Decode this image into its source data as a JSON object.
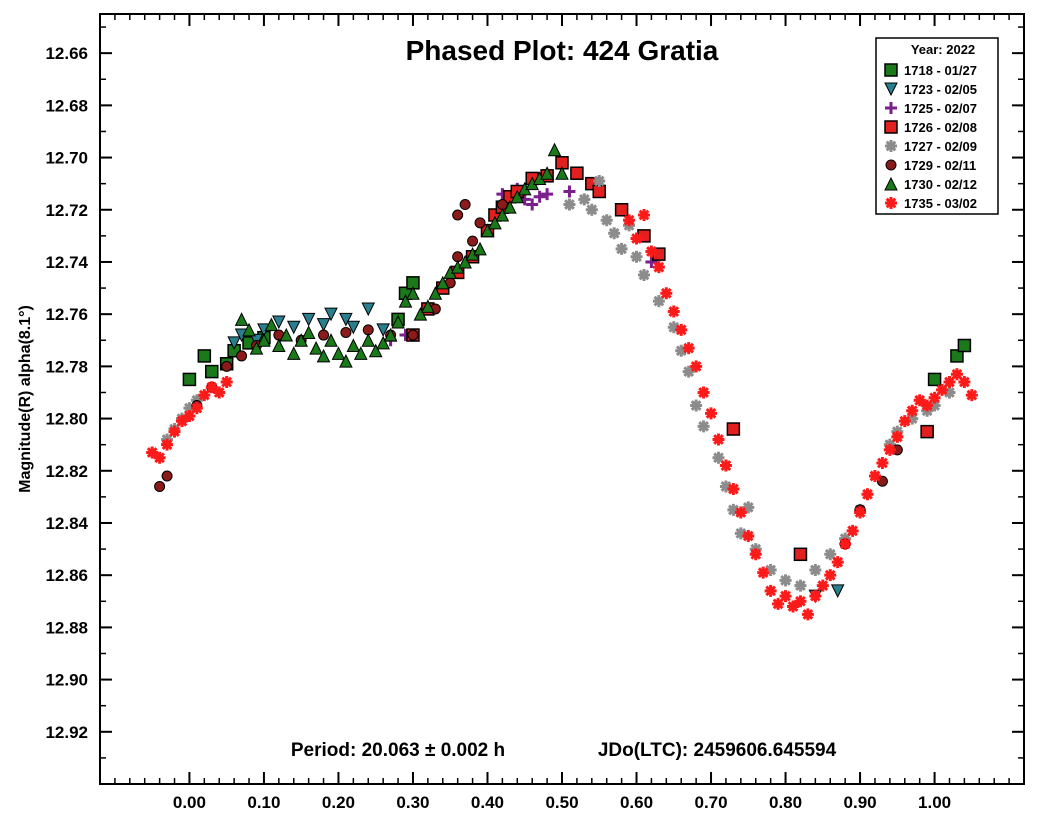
{
  "chart_data": {
    "type": "scatter",
    "title": "Phased Plot: 424 Gratia",
    "xlabel": "",
    "ylabel": "Magnitude(R) alpha(8.1°)",
    "footer_period": "Period: 20.063 ± 0.002 h",
    "footer_epoch": "JDo(LTC): 2459606.645594",
    "x_ticks": [
      "0.00",
      "0.10",
      "0.20",
      "0.30",
      "0.40",
      "0.50",
      "0.60",
      "0.70",
      "0.80",
      "0.90",
      "1.00"
    ],
    "y_ticks": [
      "12.66",
      "12.68",
      "12.70",
      "12.72",
      "12.74",
      "12.76",
      "12.78",
      "12.80",
      "12.82",
      "12.84",
      "12.86",
      "12.88",
      "12.90",
      "12.92"
    ],
    "xlim": [
      -0.12,
      1.12
    ],
    "ylim": [
      12.645,
      12.94
    ],
    "y_inverted": true,
    "grid": false,
    "legend_position": "top-right",
    "legend_title": "Year: 2022",
    "series": [
      {
        "name": "1718 - 01/27",
        "marker": "square",
        "color": "#1a7a1a",
        "points": [
          [
            0.0,
            12.785
          ],
          [
            0.02,
            12.776
          ],
          [
            0.03,
            12.782
          ],
          [
            0.05,
            12.779
          ],
          [
            0.06,
            12.774
          ],
          [
            0.08,
            12.771
          ],
          [
            0.1,
            12.769
          ],
          [
            0.28,
            12.762
          ],
          [
            0.29,
            12.752
          ],
          [
            0.3,
            12.748
          ],
          [
            1.0,
            12.785
          ],
          [
            1.03,
            12.776
          ],
          [
            1.04,
            12.772
          ]
        ]
      },
      {
        "name": "1723 - 02/05",
        "marker": "triangle-down",
        "color": "#2a7f8f",
        "points": [
          [
            0.06,
            12.771
          ],
          [
            0.07,
            12.768
          ],
          [
            0.09,
            12.77
          ],
          [
            0.1,
            12.766
          ],
          [
            0.12,
            12.763
          ],
          [
            0.14,
            12.765
          ],
          [
            0.16,
            12.762
          ],
          [
            0.18,
            12.764
          ],
          [
            0.19,
            12.76
          ],
          [
            0.21,
            12.762
          ],
          [
            0.22,
            12.765
          ],
          [
            0.24,
            12.758
          ],
          [
            0.26,
            12.766
          ],
          [
            0.84,
            12.868
          ],
          [
            0.87,
            12.866
          ]
        ]
      },
      {
        "name": "1725 - 02/07",
        "marker": "plus",
        "color": "#7a1f8c",
        "points": [
          [
            0.27,
            12.77
          ],
          [
            0.29,
            12.768
          ],
          [
            0.42,
            12.714
          ],
          [
            0.44,
            12.712
          ],
          [
            0.45,
            12.716
          ],
          [
            0.46,
            12.718
          ],
          [
            0.47,
            12.715
          ],
          [
            0.48,
            12.714
          ],
          [
            0.51,
            12.713
          ],
          [
            0.62,
            12.74
          ]
        ]
      },
      {
        "name": "1726 - 02/08",
        "marker": "square",
        "color": "#e32020",
        "points": [
          [
            0.3,
            12.768
          ],
          [
            0.32,
            12.758
          ],
          [
            0.34,
            12.75
          ],
          [
            0.36,
            12.744
          ],
          [
            0.38,
            12.738
          ],
          [
            0.4,
            12.728
          ],
          [
            0.41,
            12.722
          ],
          [
            0.42,
            12.719
          ],
          [
            0.43,
            12.715
          ],
          [
            0.44,
            12.713
          ],
          [
            0.46,
            12.708
          ],
          [
            0.48,
            12.707
          ],
          [
            0.5,
            12.702
          ],
          [
            0.52,
            12.706
          ],
          [
            0.54,
            12.71
          ],
          [
            0.55,
            12.713
          ],
          [
            0.58,
            12.72
          ],
          [
            0.61,
            12.73
          ],
          [
            0.63,
            12.737
          ],
          [
            0.73,
            12.804
          ],
          [
            0.82,
            12.852
          ],
          [
            0.99,
            12.805
          ]
        ]
      },
      {
        "name": "1727 - 02/09",
        "marker": "asterisk",
        "color": "#8c8c8c",
        "points": [
          [
            -0.03,
            12.808
          ],
          [
            -0.02,
            12.804
          ],
          [
            -0.01,
            12.8
          ],
          [
            0.0,
            12.796
          ],
          [
            0.01,
            12.793
          ],
          [
            0.51,
            12.718
          ],
          [
            0.53,
            12.716
          ],
          [
            0.54,
            12.72
          ],
          [
            0.55,
            12.709
          ],
          [
            0.56,
            12.724
          ],
          [
            0.57,
            12.729
          ],
          [
            0.58,
            12.735
          ],
          [
            0.59,
            12.726
          ],
          [
            0.6,
            12.738
          ],
          [
            0.61,
            12.745
          ],
          [
            0.63,
            12.755
          ],
          [
            0.65,
            12.765
          ],
          [
            0.66,
            12.774
          ],
          [
            0.67,
            12.782
          ],
          [
            0.68,
            12.795
          ],
          [
            0.69,
            12.803
          ],
          [
            0.71,
            12.815
          ],
          [
            0.72,
            12.826
          ],
          [
            0.73,
            12.835
          ],
          [
            0.74,
            12.844
          ],
          [
            0.75,
            12.834
          ],
          [
            0.76,
            12.85
          ],
          [
            0.78,
            12.858
          ],
          [
            0.8,
            12.862
          ],
          [
            0.82,
            12.864
          ],
          [
            0.84,
            12.858
          ],
          [
            0.86,
            12.852
          ],
          [
            0.88,
            12.846
          ],
          [
            0.9,
            12.835
          ],
          [
            0.92,
            12.822
          ],
          [
            0.94,
            12.81
          ],
          [
            0.95,
            12.805
          ],
          [
            0.97,
            12.8
          ],
          [
            0.99,
            12.797
          ],
          [
            1.0,
            12.795
          ],
          [
            1.02,
            12.79
          ]
        ]
      },
      {
        "name": "1729 - 02/11",
        "marker": "circle",
        "color": "#8b1a1a",
        "points": [
          [
            -0.04,
            12.826
          ],
          [
            -0.03,
            12.822
          ],
          [
            0.01,
            12.795
          ],
          [
            0.03,
            12.788
          ],
          [
            0.05,
            12.78
          ],
          [
            0.07,
            12.776
          ],
          [
            0.09,
            12.772
          ],
          [
            0.12,
            12.768
          ],
          [
            0.15,
            12.77
          ],
          [
            0.18,
            12.768
          ],
          [
            0.21,
            12.767
          ],
          [
            0.24,
            12.766
          ],
          [
            0.27,
            12.768
          ],
          [
            0.3,
            12.768
          ],
          [
            0.33,
            12.758
          ],
          [
            0.35,
            12.748
          ],
          [
            0.36,
            12.738
          ],
          [
            0.38,
            12.732
          ],
          [
            0.39,
            12.725
          ],
          [
            0.36,
            12.722
          ],
          [
            0.37,
            12.718
          ],
          [
            0.42,
            12.718
          ],
          [
            0.88,
            12.848
          ],
          [
            0.9,
            12.835
          ],
          [
            0.93,
            12.824
          ],
          [
            0.95,
            12.812
          ]
        ]
      },
      {
        "name": "1730 - 02/12",
        "marker": "triangle-up",
        "color": "#1a7a1a",
        "points": [
          [
            0.07,
            12.762
          ],
          [
            0.08,
            12.766
          ],
          [
            0.09,
            12.773
          ],
          [
            0.1,
            12.77
          ],
          [
            0.11,
            12.764
          ],
          [
            0.12,
            12.772
          ],
          [
            0.13,
            12.768
          ],
          [
            0.14,
            12.775
          ],
          [
            0.15,
            12.77
          ],
          [
            0.16,
            12.767
          ],
          [
            0.17,
            12.773
          ],
          [
            0.18,
            12.776
          ],
          [
            0.19,
            12.77
          ],
          [
            0.2,
            12.775
          ],
          [
            0.21,
            12.778
          ],
          [
            0.22,
            12.772
          ],
          [
            0.23,
            12.775
          ],
          [
            0.24,
            12.77
          ],
          [
            0.25,
            12.774
          ],
          [
            0.26,
            12.771
          ],
          [
            0.27,
            12.768
          ],
          [
            0.28,
            12.763
          ],
          [
            0.29,
            12.755
          ],
          [
            0.3,
            12.752
          ],
          [
            0.31,
            12.76
          ],
          [
            0.32,
            12.757
          ],
          [
            0.33,
            12.752
          ],
          [
            0.34,
            12.748
          ],
          [
            0.35,
            12.744
          ],
          [
            0.36,
            12.742
          ],
          [
            0.37,
            12.74
          ],
          [
            0.38,
            12.737
          ],
          [
            0.39,
            12.735
          ],
          [
            0.4,
            12.728
          ],
          [
            0.41,
            12.725
          ],
          [
            0.42,
            12.722
          ],
          [
            0.43,
            12.719
          ],
          [
            0.44,
            12.715
          ],
          [
            0.45,
            12.712
          ],
          [
            0.46,
            12.71
          ],
          [
            0.47,
            12.708
          ],
          [
            0.48,
            12.706
          ],
          [
            0.49,
            12.697
          ],
          [
            0.5,
            12.706
          ]
        ]
      },
      {
        "name": "1735 - 03/02",
        "marker": "asterisk",
        "color": "#ff1a1a",
        "points": [
          [
            -0.05,
            12.813
          ],
          [
            -0.04,
            12.815
          ],
          [
            -0.03,
            12.81
          ],
          [
            -0.02,
            12.805
          ],
          [
            -0.01,
            12.801
          ],
          [
            0.0,
            12.799
          ],
          [
            0.01,
            12.796
          ],
          [
            0.02,
            12.791
          ],
          [
            0.03,
            12.788
          ],
          [
            0.04,
            12.79
          ],
          [
            0.05,
            12.786
          ],
          [
            0.59,
            12.724
          ],
          [
            0.6,
            12.731
          ],
          [
            0.61,
            12.722
          ],
          [
            0.62,
            12.736
          ],
          [
            0.63,
            12.742
          ],
          [
            0.64,
            12.752
          ],
          [
            0.65,
            12.759
          ],
          [
            0.66,
            12.766
          ],
          [
            0.67,
            12.773
          ],
          [
            0.68,
            12.78
          ],
          [
            0.69,
            12.79
          ],
          [
            0.7,
            12.798
          ],
          [
            0.71,
            12.808
          ],
          [
            0.72,
            12.818
          ],
          [
            0.73,
            12.827
          ],
          [
            0.74,
            12.836
          ],
          [
            0.75,
            12.845
          ],
          [
            0.76,
            12.852
          ],
          [
            0.77,
            12.859
          ],
          [
            0.78,
            12.866
          ],
          [
            0.79,
            12.871
          ],
          [
            0.8,
            12.868
          ],
          [
            0.81,
            12.872
          ],
          [
            0.82,
            12.87
          ],
          [
            0.83,
            12.875
          ],
          [
            0.84,
            12.868
          ],
          [
            0.85,
            12.864
          ],
          [
            0.86,
            12.86
          ],
          [
            0.87,
            12.855
          ],
          [
            0.88,
            12.848
          ],
          [
            0.89,
            12.843
          ],
          [
            0.9,
            12.836
          ],
          [
            0.91,
            12.829
          ],
          [
            0.92,
            12.822
          ],
          [
            0.93,
            12.817
          ],
          [
            0.94,
            12.812
          ],
          [
            0.95,
            12.807
          ],
          [
            0.96,
            12.801
          ],
          [
            0.97,
            12.797
          ],
          [
            0.98,
            12.793
          ],
          [
            0.99,
            12.795
          ],
          [
            1.0,
            12.792
          ],
          [
            1.01,
            12.789
          ],
          [
            1.02,
            12.786
          ],
          [
            1.03,
            12.783
          ],
          [
            1.04,
            12.786
          ],
          [
            1.05,
            12.791
          ]
        ]
      }
    ]
  }
}
